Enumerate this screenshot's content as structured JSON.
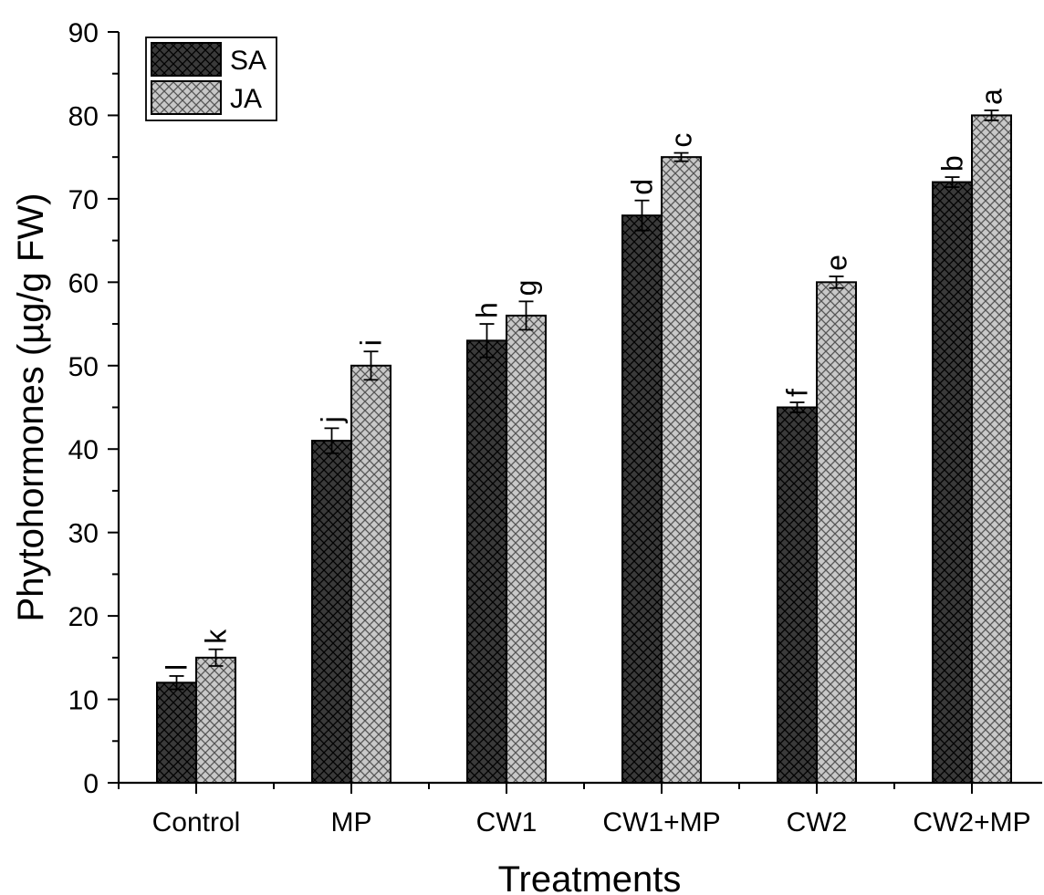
{
  "chart_data": {
    "type": "bar",
    "ylabel": "Phytohormones (µg/g FW)",
    "xlabel": "Treatments",
    "ylim": [
      0,
      90
    ],
    "yticks": [
      0,
      10,
      20,
      30,
      40,
      50,
      60,
      70,
      80,
      90
    ],
    "categories": [
      "Control",
      "MP",
      "CW1",
      "CW1+MP",
      "CW2",
      "CW2+MP"
    ],
    "legend_position": "top-left",
    "series": [
      {
        "name": "SA",
        "color": "#3a3a3a",
        "hatch": "#000000",
        "values": [
          12,
          41,
          53,
          68,
          45,
          72
        ],
        "errors": [
          0.8,
          1.5,
          2.0,
          1.8,
          0.6,
          0.6
        ],
        "sig_letters": [
          "l",
          "j",
          "h",
          "d",
          "f",
          "b"
        ]
      },
      {
        "name": "JA",
        "color": "#c8c8c8",
        "hatch": "#555555",
        "values": [
          15,
          50,
          56,
          75,
          60,
          80
        ],
        "errors": [
          1.0,
          1.7,
          1.7,
          0.5,
          0.7,
          0.6
        ],
        "sig_letters": [
          "k",
          "i",
          "g",
          "c",
          "e",
          "a"
        ]
      }
    ]
  }
}
